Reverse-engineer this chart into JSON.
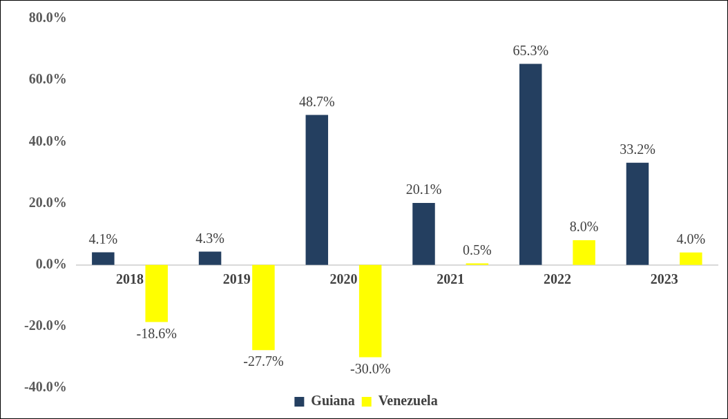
{
  "chart_data": {
    "type": "bar",
    "categories": [
      "2018",
      "2019",
      "2020",
      "2021",
      "2022",
      "2023"
    ],
    "series": [
      {
        "name": "Guiana",
        "color": "#243f60",
        "values": [
          4.1,
          4.3,
          48.7,
          20.1,
          65.3,
          33.2
        ],
        "value_labels": [
          "4.1%",
          "4.3%",
          "48.7%",
          "20.1%",
          "65.3%",
          "33.2%"
        ]
      },
      {
        "name": "Venezuela",
        "color": "#ffff00",
        "values": [
          -18.6,
          -27.7,
          -30.0,
          0.5,
          8.0,
          4.0
        ],
        "value_labels": [
          "-18.6%",
          "-27.7%",
          "-30.0%",
          "0.5%",
          "8.0%",
          "4.0%"
        ]
      }
    ],
    "ylim": [
      -40,
      80
    ],
    "yticks": [
      {
        "value": -40,
        "label": "-40.0%"
      },
      {
        "value": -20,
        "label": "-20.0%"
      },
      {
        "value": 0,
        "label": "0.0%"
      },
      {
        "value": 20,
        "label": "20.0%"
      },
      {
        "value": 40,
        "label": "40.0%"
      },
      {
        "value": 60,
        "label": "60.0%"
      },
      {
        "value": 80,
        "label": "80.0%"
      }
    ],
    "grid": false,
    "legend": "bottom"
  }
}
